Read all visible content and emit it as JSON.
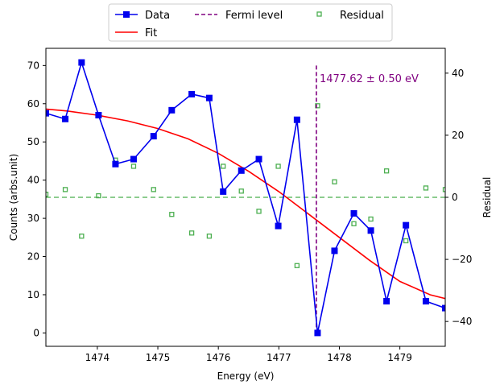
{
  "chart_data": {
    "type": "line",
    "xlabel": "Energy (eV)",
    "ylabel": "Counts (arbs.unit)",
    "y2label": "Residual",
    "xlim": [
      1473.15,
      1479.75
    ],
    "ylim": [
      -3.5,
      74.5
    ],
    "y2lim": [
      -48,
      48
    ],
    "xticks": [
      1474,
      1475,
      1476,
      1477,
      1478,
      1479
    ],
    "yticks": [
      0,
      10,
      20,
      30,
      40,
      50,
      60,
      70
    ],
    "y2ticks": [
      -40,
      -20,
      0,
      20,
      40
    ],
    "legend_position": "top-center",
    "legend": [
      {
        "key": "data",
        "label": "Data"
      },
      {
        "key": "fit",
        "label": "Fit"
      },
      {
        "key": "fermi",
        "label": "Fermi level"
      },
      {
        "key": "residual",
        "label": "Residual"
      }
    ],
    "series": [
      {
        "name": "Data",
        "color": "#0000ee",
        "marker": "square",
        "x": [
          1473.15,
          1473.47,
          1473.74,
          1474.02,
          1474.3,
          1474.6,
          1474.93,
          1475.23,
          1475.56,
          1475.85,
          1476.08,
          1476.38,
          1476.67,
          1476.99,
          1477.3,
          1477.64,
          1477.92,
          1478.24,
          1478.52,
          1478.78,
          1479.1,
          1479.43,
          1479.75
        ],
        "y": [
          57.5,
          56.0,
          70.8,
          57.0,
          44.2,
          45.5,
          51.5,
          58.3,
          62.5,
          61.5,
          37.0,
          42.5,
          45.5,
          28.0,
          55.8,
          0.0,
          21.5,
          31.3,
          26.8,
          8.3,
          28.2,
          8.3,
          6.5
        ]
      },
      {
        "name": "Fit",
        "color": "#ff0000",
        "x": [
          1473.15,
          1473.5,
          1474.0,
          1474.5,
          1475.0,
          1475.5,
          1476.0,
          1476.5,
          1477.0,
          1477.5,
          1478.0,
          1478.5,
          1479.0,
          1479.5,
          1479.75
        ],
        "y": [
          58.6,
          58.1,
          57.0,
          55.5,
          53.5,
          50.8,
          47.0,
          42.3,
          37.0,
          31.0,
          25.0,
          19.0,
          13.5,
          10.0,
          9.0
        ]
      },
      {
        "name": "Residual",
        "color": "#4caf50",
        "marker": "square-open",
        "axis": "right",
        "x": [
          1473.15,
          1473.47,
          1473.74,
          1474.02,
          1474.3,
          1474.6,
          1474.93,
          1475.23,
          1475.56,
          1475.85,
          1476.08,
          1476.38,
          1476.67,
          1476.99,
          1477.3,
          1477.64,
          1477.92,
          1478.24,
          1478.52,
          1478.78,
          1479.1,
          1479.43,
          1479.75
        ],
        "y": [
          1.0,
          2.5,
          -12.5,
          0.5,
          12.0,
          10.0,
          2.5,
          -5.5,
          -11.5,
          -12.5,
          10.0,
          2.0,
          -4.5,
          10.0,
          -22.0,
          29.5,
          5.0,
          -8.5,
          -7.0,
          8.5,
          -14.0,
          3.0,
          2.5
        ]
      }
    ],
    "zero_line": {
      "axis": "right",
      "y": 0,
      "color": "#4caf50",
      "style": "dashed"
    },
    "fermi_level": {
      "x": 1477.62,
      "color": "#800080",
      "style": "dashed",
      "y_from": 0,
      "y_to": 70
    },
    "annotation": {
      "text": "1477.62 ± 0.50 eV",
      "color": "#800080"
    }
  }
}
